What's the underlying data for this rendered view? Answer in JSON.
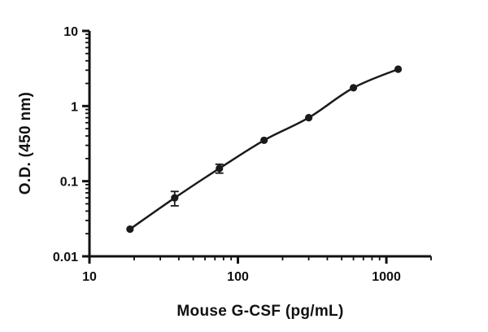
{
  "figure": {
    "background": "#ffffff"
  },
  "chart_data": {
    "type": "scatter",
    "title": "",
    "xlabel": "Mouse G-CSF (pg/mL)",
    "ylabel": "O.D. (450 nm)",
    "x_scale": "log",
    "y_scale": "log",
    "xlim": [
      10,
      2000
    ],
    "ylim": [
      0.01,
      10
    ],
    "x": [
      18.75,
      37.5,
      75,
      150,
      300,
      600,
      1200
    ],
    "y": [
      0.023,
      0.06,
      0.148,
      0.35,
      0.7,
      1.75,
      3.1
    ],
    "y_err": [
      0,
      0.013,
      0.02,
      0,
      0,
      0,
      0
    ],
    "x_major_ticks": [
      10,
      100,
      1000
    ],
    "x_tick_labels": [
      "10",
      "100",
      "1000"
    ],
    "y_major_ticks": [
      0.01,
      0.1,
      1,
      10
    ],
    "y_tick_labels": [
      "0.01",
      "0.1",
      "1",
      "10"
    ],
    "grid": false,
    "legend": false,
    "marker_color": "#1a1a1a",
    "line_color": "#1a1a1a",
    "axis_color": "#111111"
  }
}
